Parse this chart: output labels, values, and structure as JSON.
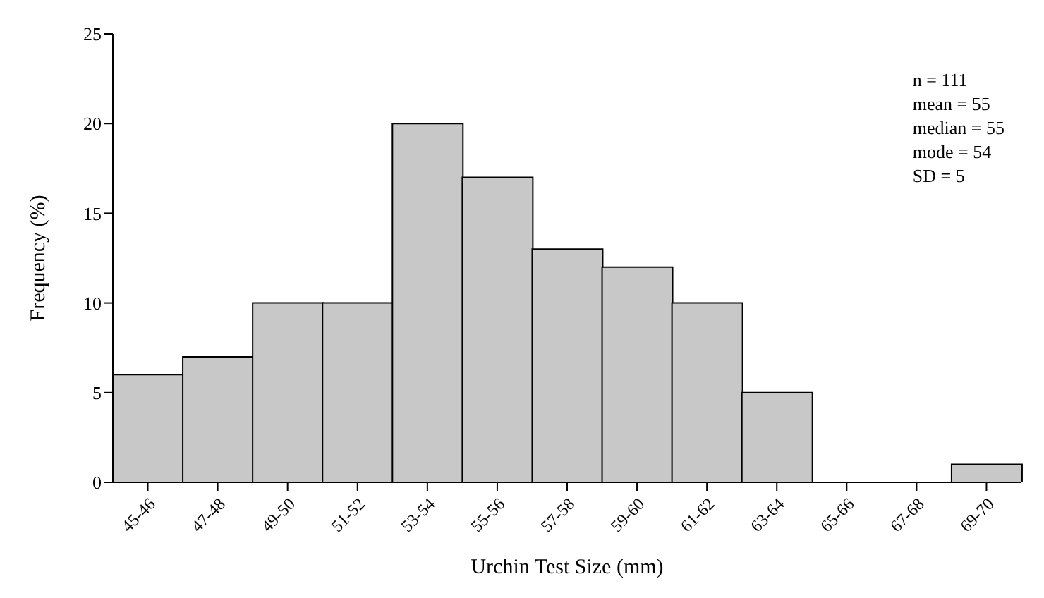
{
  "chart_data": {
    "type": "bar",
    "xlabel": "Urchin Test Size (mm)",
    "ylabel": "Frequency (%)",
    "categories": [
      "45-46",
      "47-48",
      "49-50",
      "51-52",
      "53-54",
      "55-56",
      "57-58",
      "59-60",
      "61-62",
      "63-64",
      "65-66",
      "67-68",
      "69-70"
    ],
    "values": [
      6,
      7,
      10,
      10,
      20,
      17,
      13,
      12,
      10,
      5,
      0,
      0,
      1
    ],
    "color": "#c8c8c8",
    "ylim": [
      0,
      25
    ],
    "yticks": [
      0,
      5,
      10,
      15,
      20,
      25
    ],
    "grid": false,
    "legend": false,
    "annotations": [
      "n = 111",
      "mean = 55",
      "median = 55",
      "mode = 54",
      "SD = 5"
    ]
  }
}
